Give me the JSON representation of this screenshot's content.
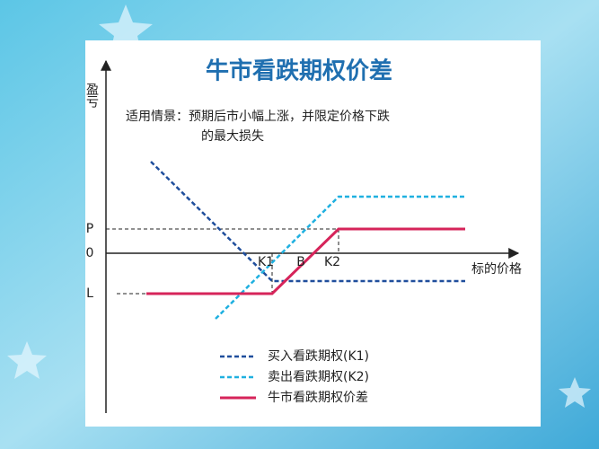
{
  "title": "牛市看跌期权价差",
  "y_axis_label": "盈亏",
  "x_axis_label": "标的价格",
  "description": [
    "适用情景：预期后市小幅上涨，并限定价格下跌",
    "的最大损失"
  ],
  "y_labels": [
    "P",
    "0",
    "L"
  ],
  "x_labels": [
    "K1",
    "B",
    "K2"
  ],
  "legend": [
    "买入看跌期权(K1)",
    "卖出看跌期权(K2)",
    "牛市看跌期权价差"
  ]
}
